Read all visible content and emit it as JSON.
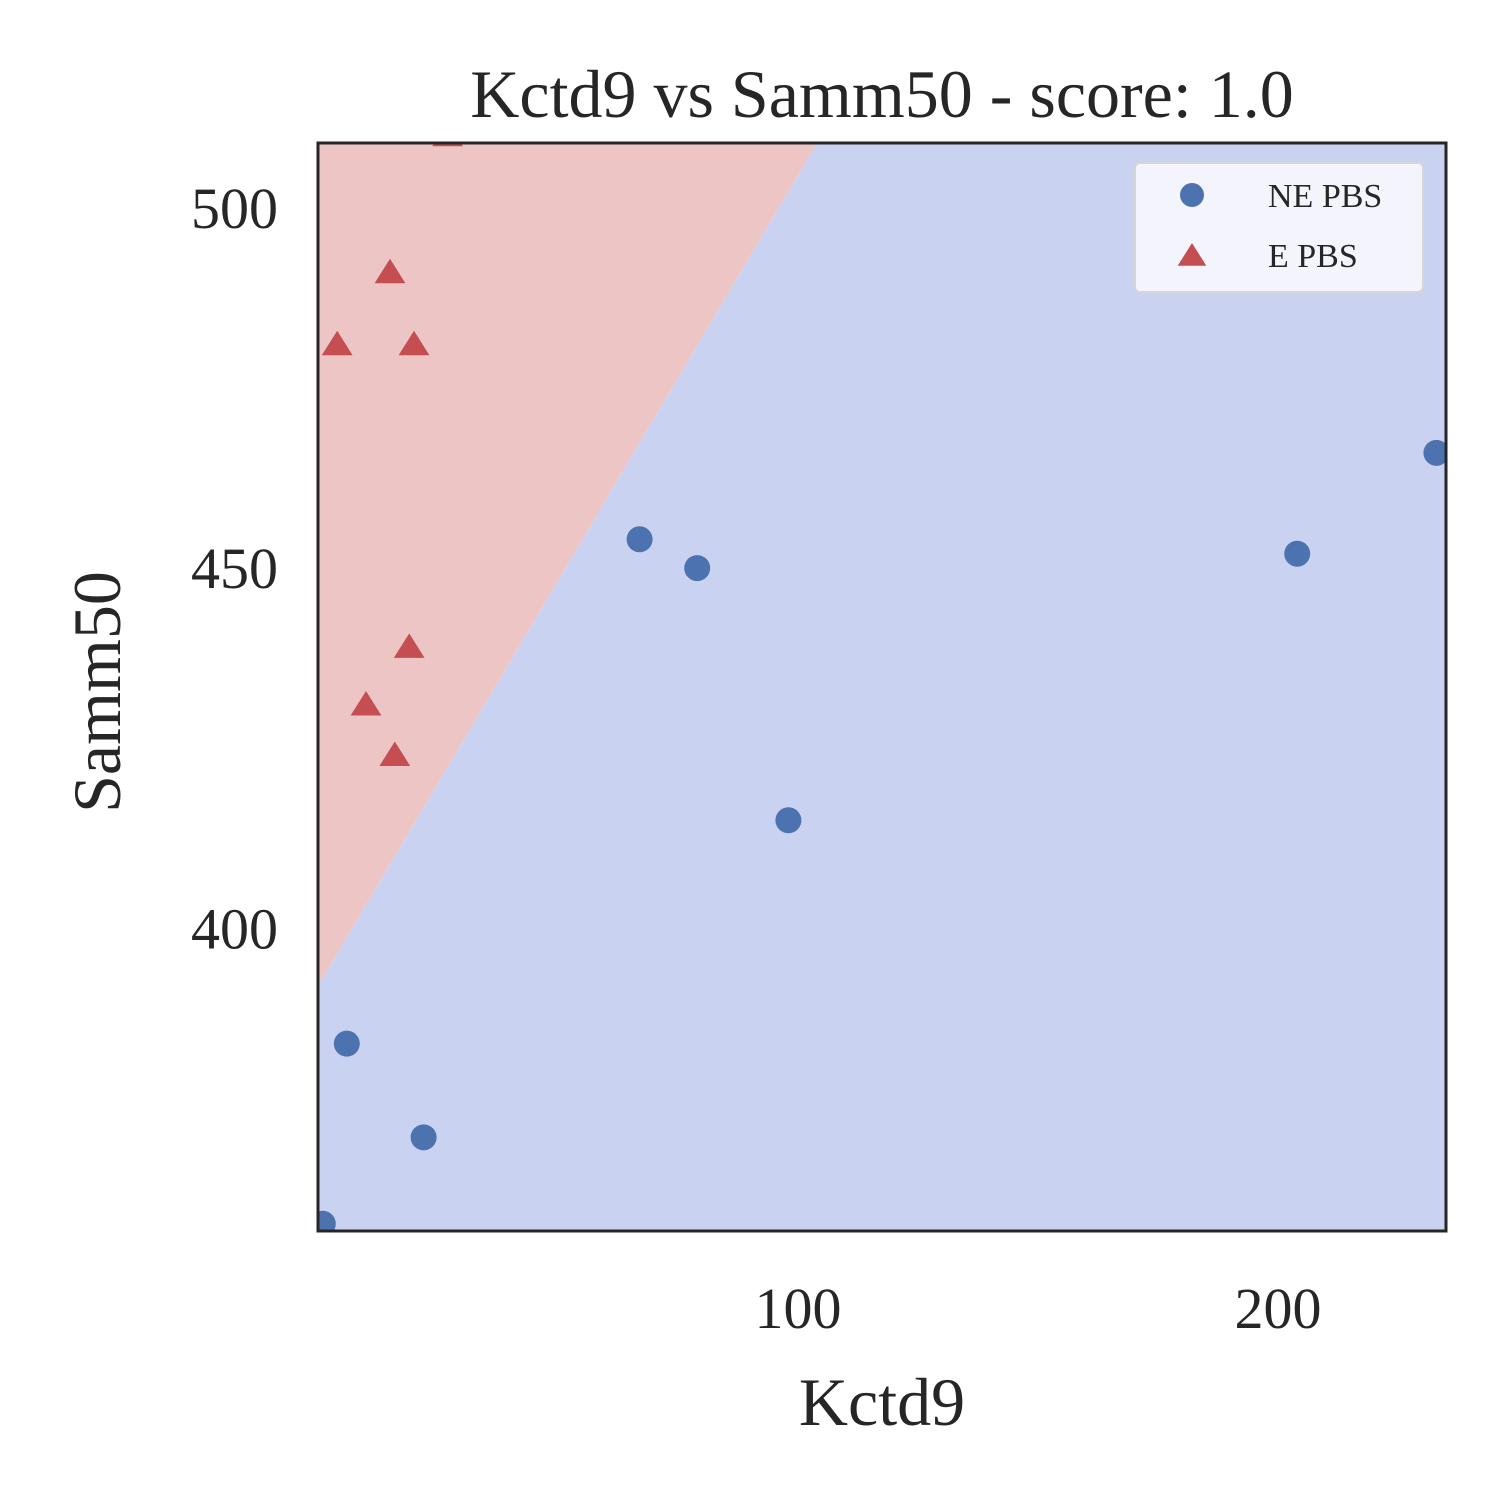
{
  "chart_data": {
    "type": "scatter",
    "title": "Kctd9 vs Samm50 - score: 1.0",
    "xlabel": "Kctd9",
    "ylabel": "Samm50",
    "xlim": [
      0,
      235
    ],
    "ylim": [
      358,
      509
    ],
    "xticks": [
      100,
      200
    ],
    "yticks": [
      400,
      450,
      500
    ],
    "grid": false,
    "legend_position": "top-right",
    "decision_boundary": {
      "points": [
        [
          0,
          392
        ],
        [
          104,
          509
        ]
      ],
      "colors": {
        "upper_left": "#eec5c5",
        "lower_right": "#c9d2f1"
      }
    },
    "series": [
      {
        "name": "NE PBS",
        "marker": "circle",
        "color": "#4c72b0",
        "points": [
          [
            1,
            359
          ],
          [
            6,
            384
          ],
          [
            22,
            371
          ],
          [
            67,
            454
          ],
          [
            79,
            450
          ],
          [
            98,
            415
          ],
          [
            204,
            452
          ],
          [
            233,
            466
          ]
        ]
      },
      {
        "name": "E PBS",
        "marker": "triangle",
        "color": "#c44e52",
        "points": [
          [
            4,
            481
          ],
          [
            10,
            431
          ],
          [
            15,
            491
          ],
          [
            16,
            424
          ],
          [
            19,
            439
          ],
          [
            20,
            481
          ],
          [
            27,
            510
          ]
        ]
      }
    ]
  }
}
